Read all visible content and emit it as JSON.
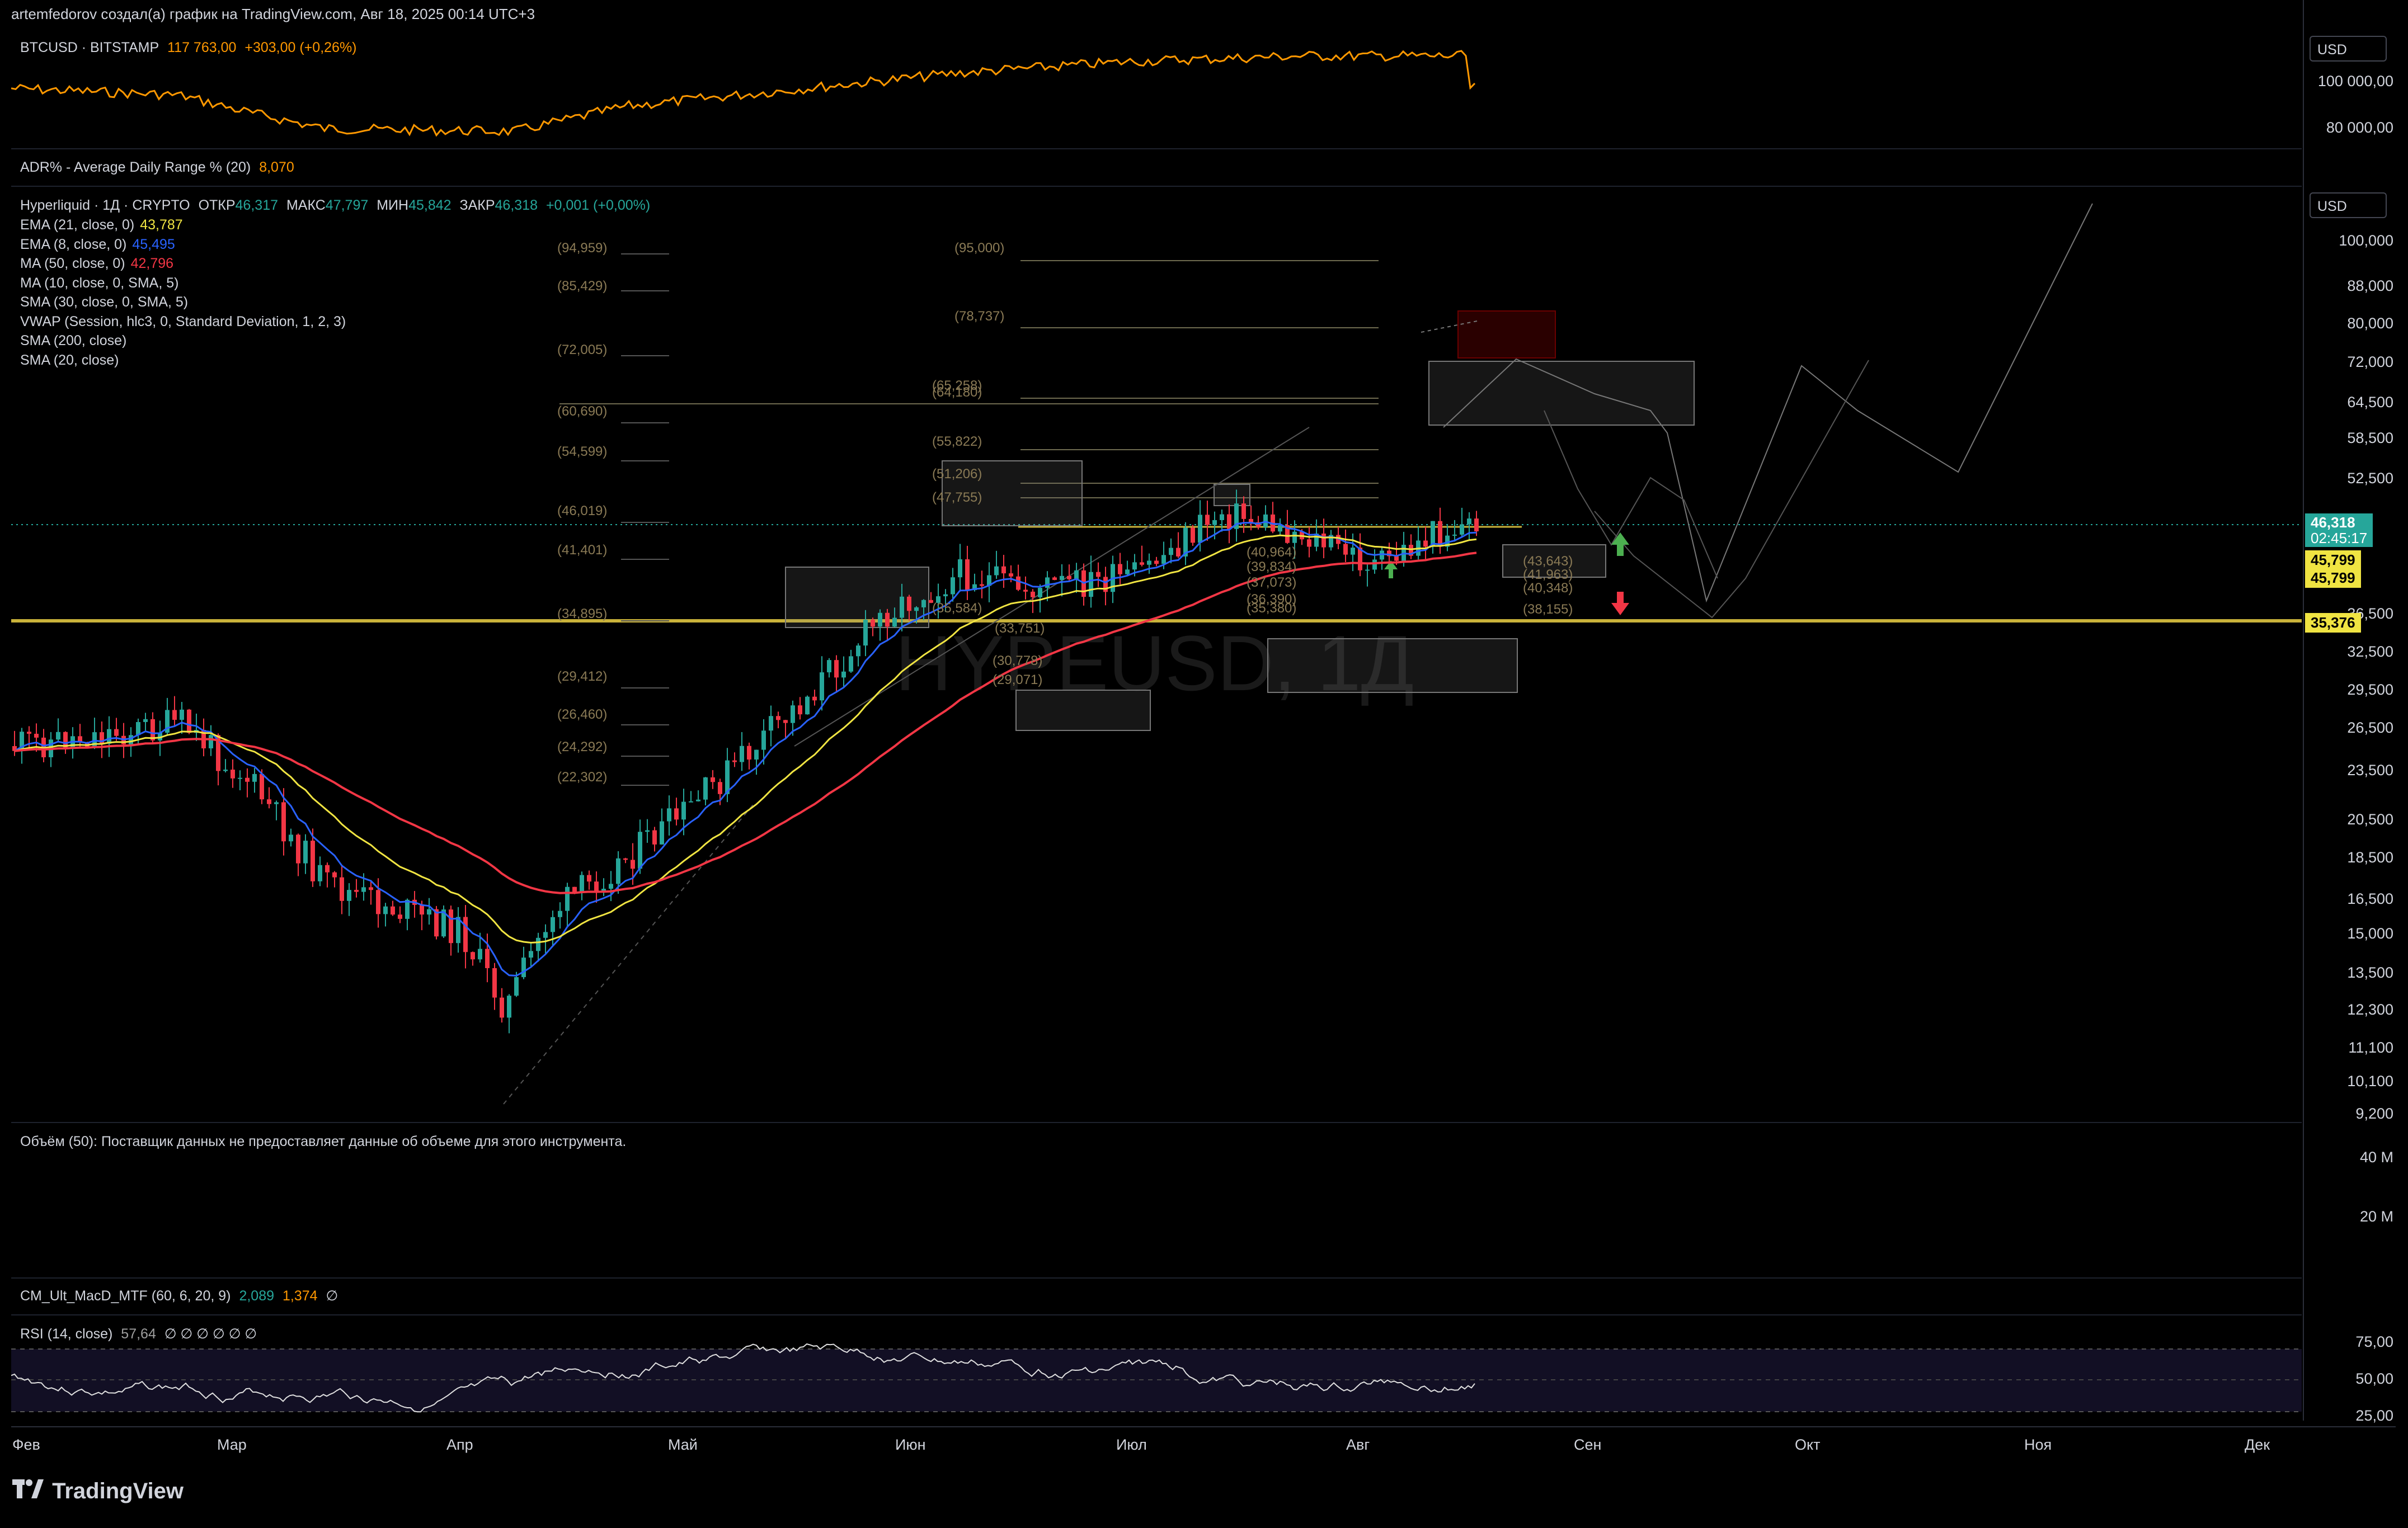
{
  "header": {
    "text": "artemfedorov создал(а) график на TradingView.com, Авг 18, 2025 00:14 UTC+3"
  },
  "top_pane": {
    "symbol": "BTCUSD · BITSTAMP",
    "price": "117 763,00",
    "change": "+303,00 (+0,26%)",
    "currency": "USD",
    "axis_labels": [
      "100 000,00",
      "80 000,00"
    ]
  },
  "adr_pane": {
    "label": "ADR% - Average Daily Range % (20)",
    "value": "8,070"
  },
  "main_pane": {
    "currency": "USD",
    "symbol_line": {
      "name": "Hyperliquid · 1Д · CRYPTO",
      "open_lbl": "ОТКР",
      "open": "46,317",
      "high_lbl": "МАКС",
      "high": "47,797",
      "low_lbl": "МИН",
      "low": "45,842",
      "close_lbl": "ЗАКР",
      "close": "46,318",
      "change": "+0,001 (+0,00%)"
    },
    "indicators": [
      {
        "label": "EMA (21, close, 0)",
        "value": "43,787",
        "color": "#f0e442"
      },
      {
        "label": "EMA (8, close, 0)",
        "value": "45,495",
        "color": "#2962ff"
      },
      {
        "label": "MA (50, close, 0)",
        "value": "42,796",
        "color": "#f23645"
      },
      {
        "label": "MA (10, close, 0, SMA, 5)",
        "value": "",
        "color": ""
      },
      {
        "label": "SMA (30, close, 0, SMA, 5)",
        "value": "",
        "color": ""
      },
      {
        "label": "VWAP (Session, hlc3, 0, Standard Deviation, 1, 2, 3)",
        "value": "",
        "color": ""
      },
      {
        "label": "SMA (200, close)",
        "value": "",
        "color": ""
      },
      {
        "label": "SMA (20, close)",
        "value": "",
        "color": ""
      }
    ],
    "axis_labels": [
      "100,000",
      "88,000",
      "80,000",
      "72,000",
      "64,500",
      "58,500",
      "52,500",
      "36,500",
      "32,500",
      "29,500",
      "26,500",
      "23,500",
      "20,500",
      "18,500",
      "16,500",
      "15,000",
      "13,500",
      "12,300",
      "11,100",
      "10,100",
      "9,200"
    ],
    "price_tags": [
      {
        "text": "46,318",
        "sub": "02:45:17",
        "bg": "#26a69a",
        "fg": "#ffffff"
      },
      {
        "text": "45,799",
        "bg": "#f0e442",
        "fg": "#000000"
      },
      {
        "text": "45,799",
        "bg": "#f0e442",
        "fg": "#000000"
      },
      {
        "text": "35,376",
        "bg": "#f0e442",
        "fg": "#000000"
      }
    ],
    "fib_labels": [
      "(94,959)",
      "(85,429)",
      "(72,005)",
      "(60,690)",
      "(54,599)",
      "(46,019)",
      "(41,401)",
      "(34,895)",
      "(29,412)",
      "(26,460)",
      "(24,292)",
      "(22,302)",
      "(95,000)",
      "(78,737)",
      "(65,258)",
      "(64,180)",
      "(55,822)",
      "(51,206)",
      "(47,755)",
      "(40,964)",
      "(39,834)",
      "(37,073)",
      "(36,390)",
      "(35,380)",
      "(35,584)",
      "(33,751)",
      "(30,778)",
      "(29,071)",
      "(43,643)",
      "(41,963)",
      "(40,348)",
      "(38,155)"
    ],
    "watermark": "HYPEUSD, 1Д"
  },
  "volume_pane": {
    "label": "Объём (50): Поставщик данных не предоставляет данные об объеме для этого инструмента.",
    "axis_labels": [
      "40 M",
      "20 M"
    ]
  },
  "macd_pane": {
    "label": "CM_Ult_MacD_MTF (60, 6, 20, 9)",
    "v1": "2,089",
    "v2": "1,374",
    "sym": "∅"
  },
  "rsi_pane": {
    "label": "RSI (14, close)",
    "value": "57,64",
    "syms": "∅ ∅ ∅ ∅ ∅ ∅",
    "axis_labels": [
      "75,00",
      "50,00",
      "25,00"
    ]
  },
  "time_axis": [
    "Фев",
    "Мар",
    "Апр",
    "Май",
    "Июн",
    "Июл",
    "Авг",
    "Сен",
    "Окт",
    "Ноя",
    "Дек"
  ],
  "footer": {
    "logo_text": "TradingView"
  },
  "colors": {
    "up": "#26a69a",
    "down": "#f23645",
    "ema8": "#2962ff",
    "ema21": "#f0e442",
    "ma50": "#f23645",
    "btc": "#ff9800"
  }
}
